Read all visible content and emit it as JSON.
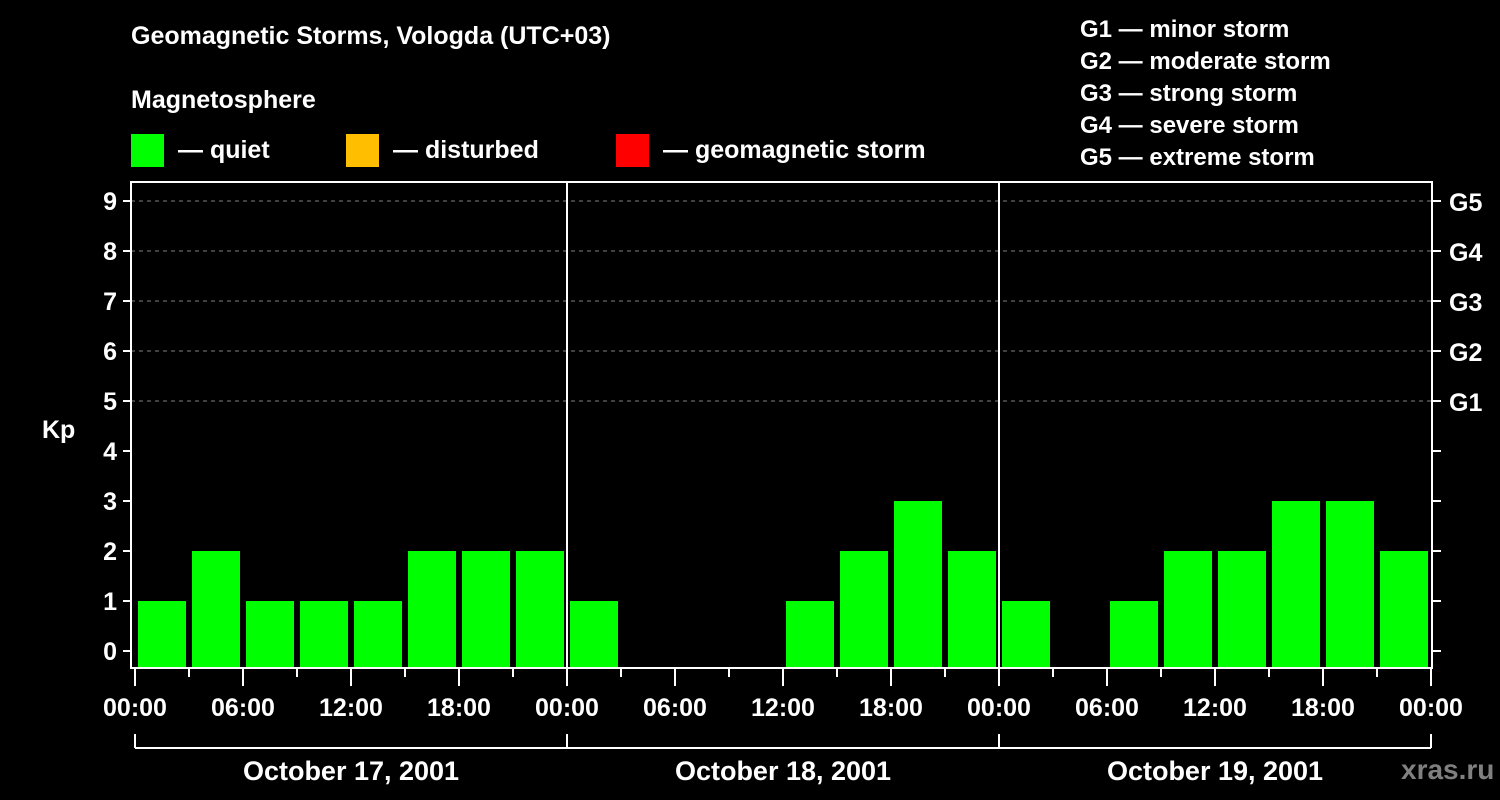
{
  "header": {
    "title": "Geomagnetic Storms, Vologda (UTC+03)",
    "subtitle": "Magnetosphere"
  },
  "legend": [
    {
      "label": "— quiet",
      "color": "#00ff00"
    },
    {
      "label": "— disturbed",
      "color": "#ffbf00"
    },
    {
      "label": "— geomagnetic storm",
      "color": "#ff0000"
    }
  ],
  "g_scale": [
    "G1 — minor storm",
    "G2 — moderate storm",
    "G3 — strong storm",
    "G4 — severe storm",
    "G5 — extreme storm"
  ],
  "watermark": "xras.ru",
  "chart_data": {
    "type": "bar",
    "title": "Geomagnetic Storms, Vologda (UTC+03)",
    "ylabel": "Kp",
    "xlabel": "",
    "ylim": [
      0,
      9
    ],
    "yticks": [
      0,
      1,
      2,
      3,
      4,
      5,
      6,
      7,
      8,
      9
    ],
    "right_axis_labels": [
      {
        "kp": 5,
        "label": "G1"
      },
      {
        "kp": 6,
        "label": "G2"
      },
      {
        "kp": 7,
        "label": "G3"
      },
      {
        "kp": 8,
        "label": "G4"
      },
      {
        "kp": 9,
        "label": "G5"
      }
    ],
    "grid": "dashed horizontal at Kp 5-9",
    "xtick_labels": [
      "00:00",
      "06:00",
      "12:00",
      "18:00",
      "00:00",
      "06:00",
      "12:00",
      "18:00",
      "00:00",
      "06:00",
      "12:00",
      "18:00",
      "00:00"
    ],
    "days": [
      "October 17, 2001",
      "October 18, 2001",
      "October 19, 2001"
    ],
    "interval_hours": 3,
    "categories": [
      "Oct 17 00-03",
      "Oct 17 03-06",
      "Oct 17 06-09",
      "Oct 17 09-12",
      "Oct 17 12-15",
      "Oct 17 15-18",
      "Oct 17 18-21",
      "Oct 17 21-24",
      "Oct 18 00-03",
      "Oct 18 03-06",
      "Oct 18 06-09",
      "Oct 18 09-12",
      "Oct 18 12-15",
      "Oct 18 15-18",
      "Oct 18 18-21",
      "Oct 18 21-24",
      "Oct 19 00-03",
      "Oct 19 03-06",
      "Oct 19 06-09",
      "Oct 19 09-12",
      "Oct 19 12-15",
      "Oct 19 15-18",
      "Oct 19 18-21",
      "Oct 19 21-24"
    ],
    "values": [
      1,
      2,
      1,
      1,
      1,
      2,
      2,
      2,
      1,
      0,
      0,
      0,
      1,
      2,
      3,
      2,
      1,
      0,
      1,
      2,
      2,
      3,
      3,
      2
    ],
    "colors": {
      "quiet": "#00ff00",
      "disturbed": "#ffbf00",
      "storm": "#ff0000"
    }
  }
}
